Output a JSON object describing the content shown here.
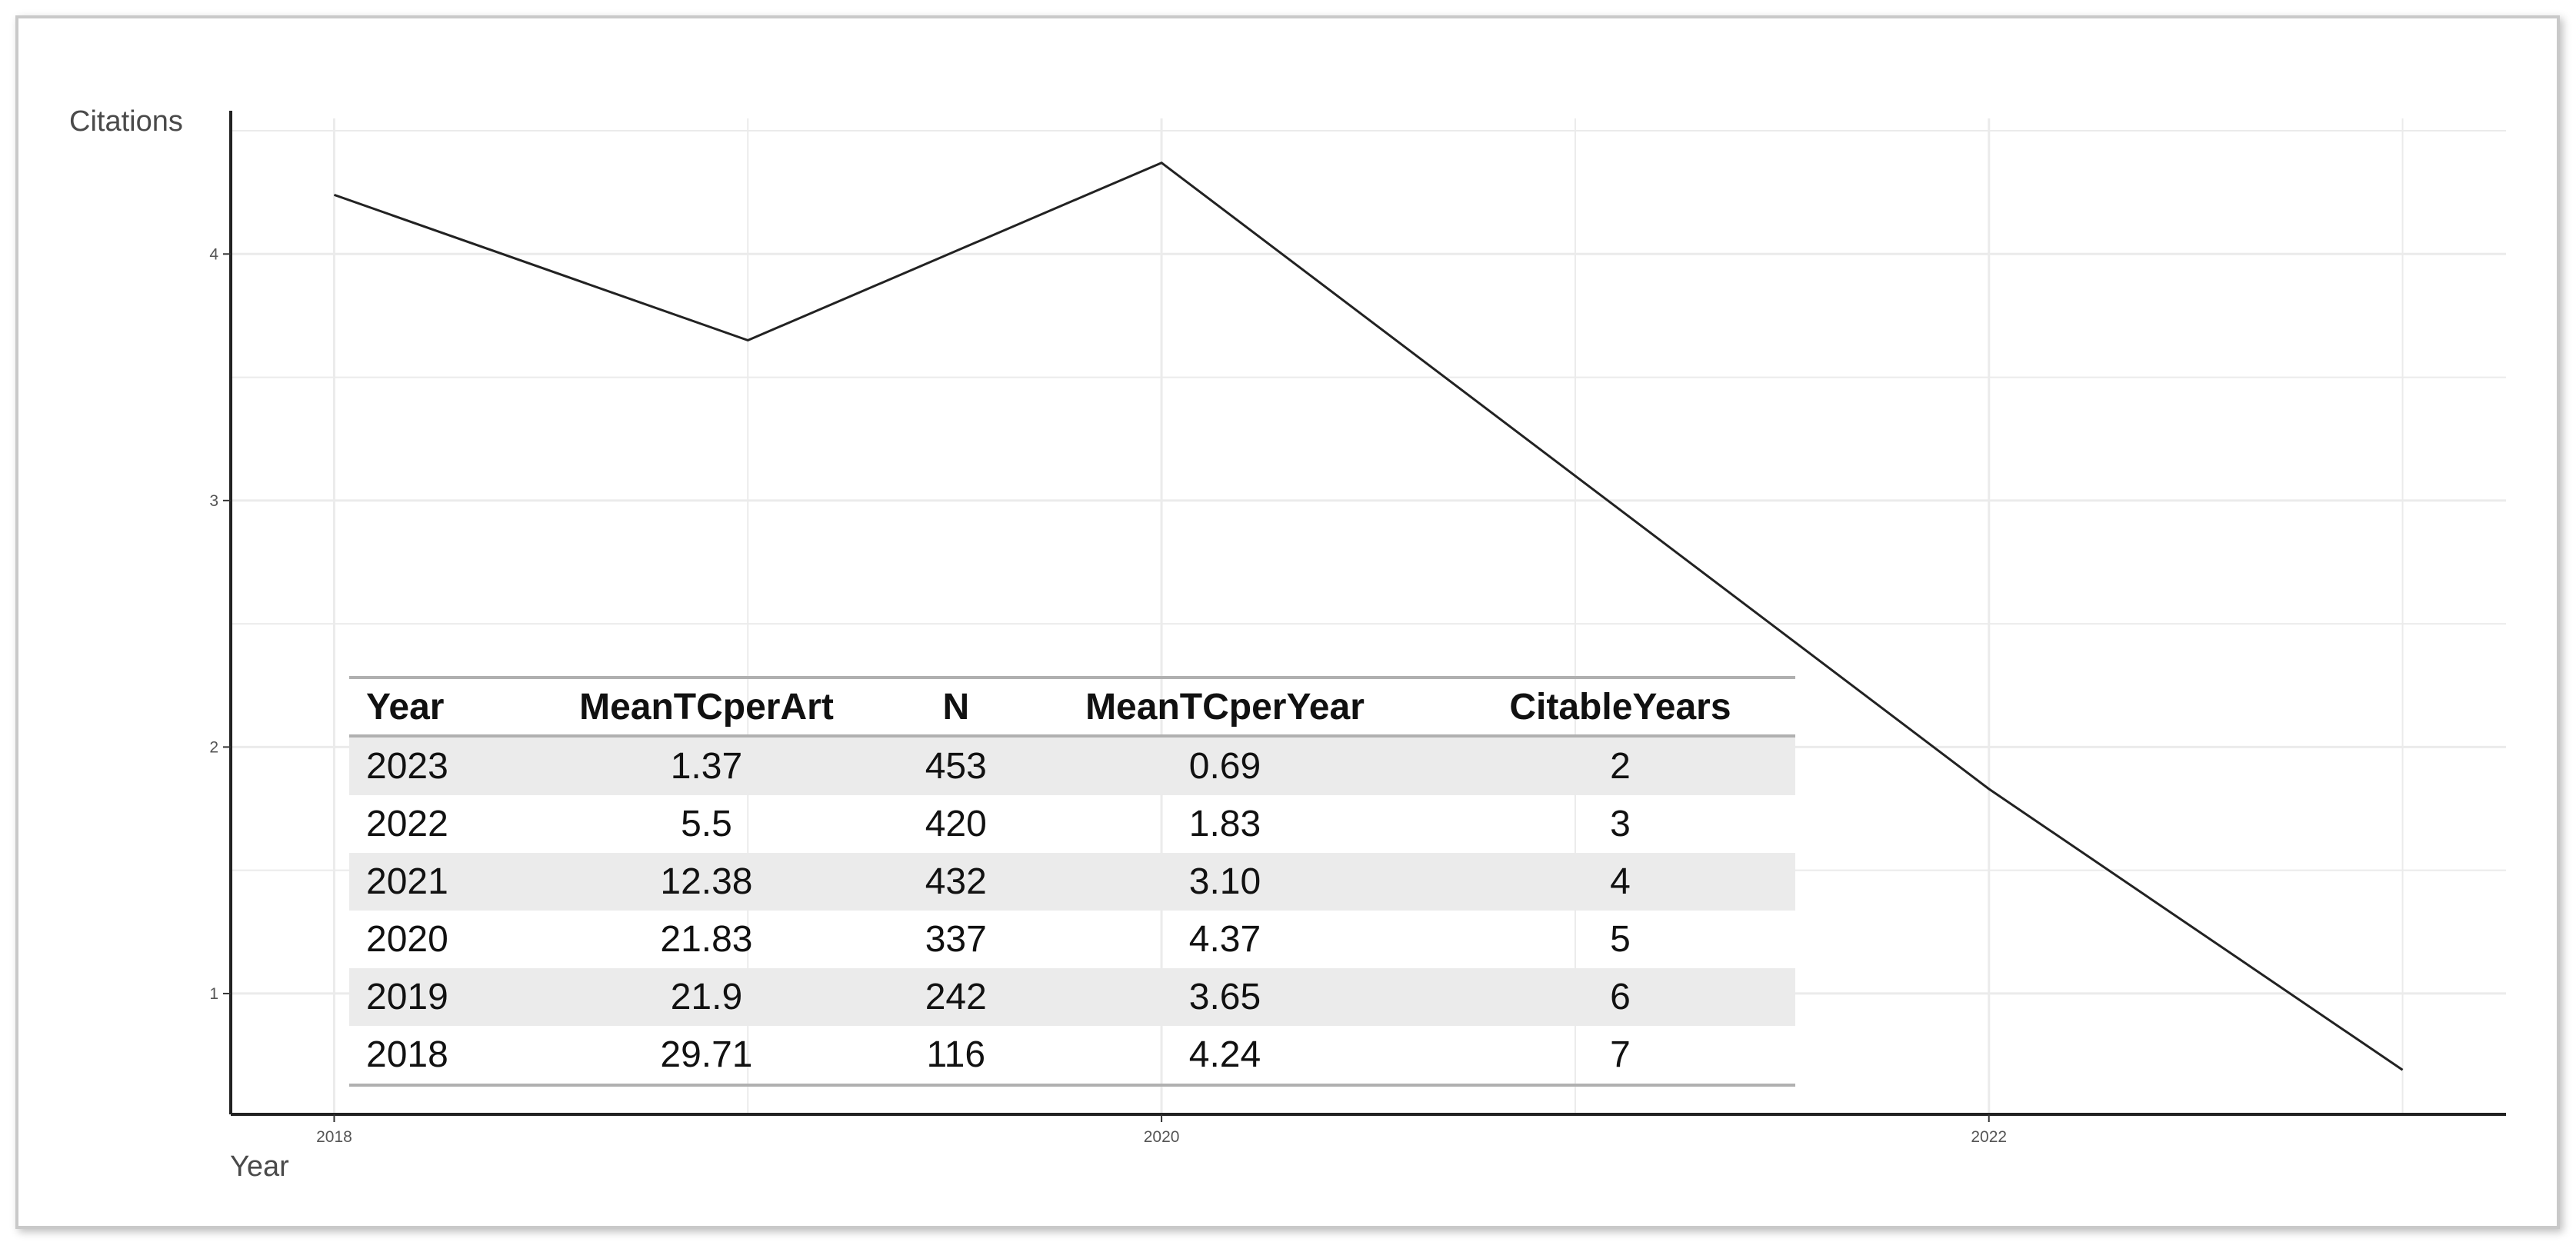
{
  "chart_data": {
    "type": "line",
    "x": [
      2018,
      2019,
      2020,
      2021,
      2022,
      2023
    ],
    "series": [
      {
        "values": [
          4.24,
          3.65,
          4.37,
          3.1,
          1.83,
          0.69
        ]
      }
    ],
    "xlabel": "Year",
    "ylabel": "Citations",
    "xlim": [
      2017.75,
      2023.25
    ],
    "ylim": [
      0.51,
      4.55
    ],
    "xticks": [
      2018,
      2020,
      2022
    ],
    "xtick_labels": [
      "2018",
      "2020",
      "2022"
    ],
    "yticks": [
      1,
      2,
      3,
      4
    ],
    "ytick_labels": [
      "1",
      "2",
      "3",
      "4"
    ],
    "grid": true,
    "line_color": "#222222",
    "grid_color": "#ebebeb"
  },
  "table": {
    "headers": [
      "Year",
      "MeanTCperArt",
      "N",
      "MeanTCperYear",
      "CitableYears"
    ],
    "rows": [
      [
        "2023",
        "1.37",
        "453",
        "0.69",
        "2"
      ],
      [
        "2022",
        "5.5",
        "420",
        "1.83",
        "3"
      ],
      [
        "2021",
        "12.38",
        "432",
        "3.10",
        "4"
      ],
      [
        "2020",
        "21.83",
        "337",
        "4.37",
        "5"
      ],
      [
        "2019",
        "21.9",
        "242",
        "3.65",
        "6"
      ],
      [
        "2018",
        "29.71",
        "116",
        "4.24",
        "7"
      ]
    ]
  }
}
